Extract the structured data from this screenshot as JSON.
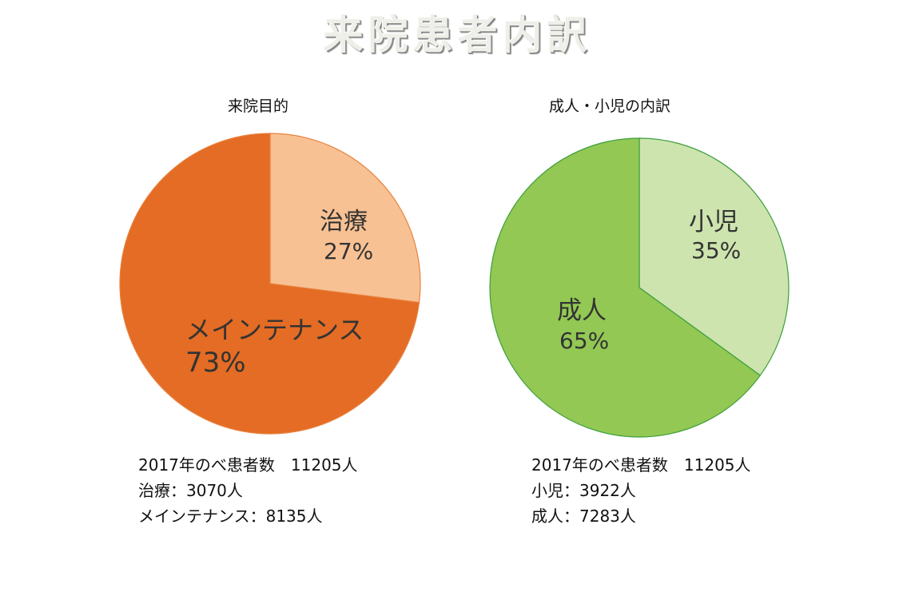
{
  "title": "来院患者内訳",
  "chart_data": [
    {
      "type": "pie",
      "title": "来院目的",
      "categories": [
        "治療",
        "メインテナンス"
      ],
      "values": [
        27,
        73
      ],
      "labels": [
        "27%",
        "73%"
      ],
      "colors": [
        "#F8C193",
        "#E46C24"
      ],
      "border": "#E8823E",
      "notes": [
        "2017年のべ患者数　11205人",
        "治療：3070人",
        "メインテナンス：8135人"
      ]
    },
    {
      "type": "pie",
      "title": "成人・小児の内訳",
      "categories": [
        "小児",
        "成人"
      ],
      "values": [
        35,
        65
      ],
      "labels": [
        "35%",
        "65%"
      ],
      "colors": [
        "#CDE4AE",
        "#92C853"
      ],
      "border": "#3E9E3E",
      "notes": [
        "2017年のべ患者数　11205人",
        "小児：3922人",
        "成人：7283人"
      ]
    }
  ]
}
